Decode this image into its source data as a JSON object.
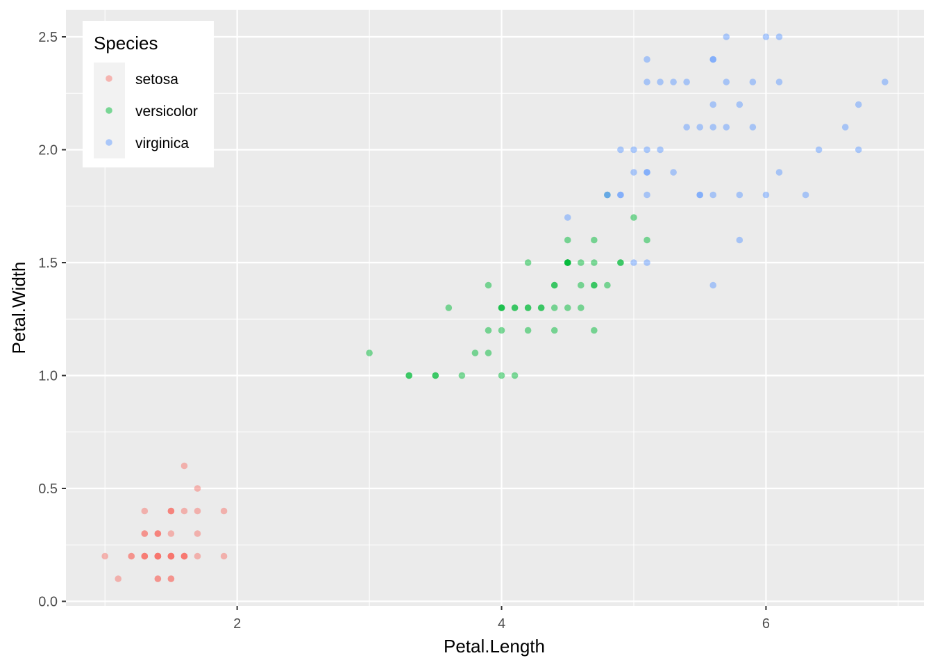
{
  "chart_data": {
    "type": "scatter",
    "xlabel": "Petal.Length",
    "ylabel": "Petal.Width",
    "xlim": [
      0.705,
      7.195
    ],
    "ylim": [
      -0.02,
      2.62
    ],
    "x_ticks": [
      2,
      4,
      6
    ],
    "x_tick_labels": [
      "2",
      "4",
      "6"
    ],
    "y_ticks": [
      0.0,
      0.5,
      1.0,
      1.5,
      2.0,
      2.5
    ],
    "y_tick_labels": [
      "0.0",
      "0.5",
      "1.0",
      "1.5",
      "2.0",
      "2.5"
    ],
    "grid": true,
    "background": "#ebebeb",
    "legend": {
      "title": "Species",
      "position": "top-left"
    },
    "series": [
      {
        "name": "setosa",
        "color": "#F8766D",
        "points": [
          [
            1.4,
            0.2
          ],
          [
            1.4,
            0.2
          ],
          [
            1.3,
            0.2
          ],
          [
            1.5,
            0.2
          ],
          [
            1.4,
            0.2
          ],
          [
            1.7,
            0.4
          ],
          [
            1.4,
            0.3
          ],
          [
            1.5,
            0.2
          ],
          [
            1.4,
            0.2
          ],
          [
            1.5,
            0.1
          ],
          [
            1.5,
            0.2
          ],
          [
            1.6,
            0.2
          ],
          [
            1.4,
            0.1
          ],
          [
            1.1,
            0.1
          ],
          [
            1.2,
            0.2
          ],
          [
            1.5,
            0.4
          ],
          [
            1.3,
            0.4
          ],
          [
            1.4,
            0.3
          ],
          [
            1.7,
            0.3
          ],
          [
            1.5,
            0.3
          ],
          [
            1.7,
            0.2
          ],
          [
            1.5,
            0.4
          ],
          [
            1.0,
            0.2
          ],
          [
            1.7,
            0.5
          ],
          [
            1.9,
            0.2
          ],
          [
            1.6,
            0.2
          ],
          [
            1.6,
            0.4
          ],
          [
            1.5,
            0.2
          ],
          [
            1.4,
            0.2
          ],
          [
            1.6,
            0.2
          ],
          [
            1.6,
            0.2
          ],
          [
            1.5,
            0.4
          ],
          [
            1.5,
            0.1
          ],
          [
            1.4,
            0.2
          ],
          [
            1.5,
            0.2
          ],
          [
            1.2,
            0.2
          ],
          [
            1.3,
            0.2
          ],
          [
            1.4,
            0.1
          ],
          [
            1.3,
            0.2
          ],
          [
            1.5,
            0.2
          ],
          [
            1.3,
            0.3
          ],
          [
            1.3,
            0.3
          ],
          [
            1.3,
            0.2
          ],
          [
            1.6,
            0.6
          ],
          [
            1.9,
            0.4
          ],
          [
            1.4,
            0.3
          ],
          [
            1.6,
            0.2
          ],
          [
            1.4,
            0.2
          ],
          [
            1.5,
            0.2
          ],
          [
            1.4,
            0.2
          ]
        ]
      },
      {
        "name": "versicolor",
        "color": "#00BA38",
        "points": [
          [
            4.7,
            1.4
          ],
          [
            4.5,
            1.5
          ],
          [
            4.9,
            1.5
          ],
          [
            4.0,
            1.3
          ],
          [
            4.6,
            1.5
          ],
          [
            4.5,
            1.3
          ],
          [
            4.7,
            1.6
          ],
          [
            3.3,
            1.0
          ],
          [
            4.6,
            1.3
          ],
          [
            3.9,
            1.4
          ],
          [
            3.5,
            1.0
          ],
          [
            4.2,
            1.5
          ],
          [
            4.0,
            1.0
          ],
          [
            4.7,
            1.4
          ],
          [
            3.6,
            1.3
          ],
          [
            4.4,
            1.4
          ],
          [
            4.5,
            1.5
          ],
          [
            4.1,
            1.0
          ],
          [
            4.5,
            1.5
          ],
          [
            3.9,
            1.1
          ],
          [
            4.8,
            1.8
          ],
          [
            4.0,
            1.3
          ],
          [
            4.9,
            1.5
          ],
          [
            4.7,
            1.2
          ],
          [
            4.3,
            1.3
          ],
          [
            4.4,
            1.4
          ],
          [
            4.8,
            1.4
          ],
          [
            5.0,
            1.7
          ],
          [
            4.5,
            1.5
          ],
          [
            3.5,
            1.0
          ],
          [
            3.8,
            1.1
          ],
          [
            3.7,
            1.0
          ],
          [
            3.9,
            1.2
          ],
          [
            5.1,
            1.6
          ],
          [
            4.5,
            1.5
          ],
          [
            4.5,
            1.6
          ],
          [
            4.7,
            1.5
          ],
          [
            4.4,
            1.3
          ],
          [
            4.1,
            1.3
          ],
          [
            4.0,
            1.3
          ],
          [
            4.4,
            1.2
          ],
          [
            4.6,
            1.4
          ],
          [
            4.0,
            1.2
          ],
          [
            3.3,
            1.0
          ],
          [
            4.2,
            1.3
          ],
          [
            4.2,
            1.2
          ],
          [
            4.2,
            1.3
          ],
          [
            4.3,
            1.3
          ],
          [
            3.0,
            1.1
          ],
          [
            4.1,
            1.3
          ]
        ]
      },
      {
        "name": "virginica",
        "color": "#619CFF",
        "points": [
          [
            6.0,
            2.5
          ],
          [
            5.1,
            1.9
          ],
          [
            5.9,
            2.1
          ],
          [
            5.6,
            1.8
          ],
          [
            5.8,
            2.2
          ],
          [
            6.6,
            2.1
          ],
          [
            4.5,
            1.7
          ],
          [
            6.3,
            1.8
          ],
          [
            5.8,
            1.8
          ],
          [
            6.1,
            2.5
          ],
          [
            5.1,
            2.0
          ],
          [
            5.3,
            1.9
          ],
          [
            5.5,
            2.1
          ],
          [
            5.0,
            2.0
          ],
          [
            5.1,
            2.4
          ],
          [
            5.3,
            2.3
          ],
          [
            5.5,
            1.8
          ],
          [
            6.7,
            2.2
          ],
          [
            6.9,
            2.3
          ],
          [
            5.0,
            1.5
          ],
          [
            5.7,
            2.3
          ],
          [
            4.9,
            2.0
          ],
          [
            6.7,
            2.0
          ],
          [
            4.9,
            1.8
          ],
          [
            5.7,
            2.1
          ],
          [
            6.0,
            1.8
          ],
          [
            4.8,
            1.8
          ],
          [
            4.9,
            1.8
          ],
          [
            5.6,
            2.1
          ],
          [
            5.8,
            1.6
          ],
          [
            6.1,
            1.9
          ],
          [
            6.4,
            2.0
          ],
          [
            5.6,
            2.2
          ],
          [
            5.1,
            1.5
          ],
          [
            5.6,
            1.4
          ],
          [
            6.1,
            2.3
          ],
          [
            5.6,
            2.4
          ],
          [
            5.5,
            1.8
          ],
          [
            4.8,
            1.8
          ],
          [
            5.4,
            2.1
          ],
          [
            5.6,
            2.4
          ],
          [
            5.1,
            2.3
          ],
          [
            5.1,
            1.9
          ],
          [
            5.9,
            2.3
          ],
          [
            5.7,
            2.5
          ],
          [
            5.2,
            2.3
          ],
          [
            5.0,
            1.9
          ],
          [
            5.2,
            2.0
          ],
          [
            5.4,
            2.3
          ],
          [
            5.1,
            1.8
          ]
        ]
      }
    ]
  }
}
